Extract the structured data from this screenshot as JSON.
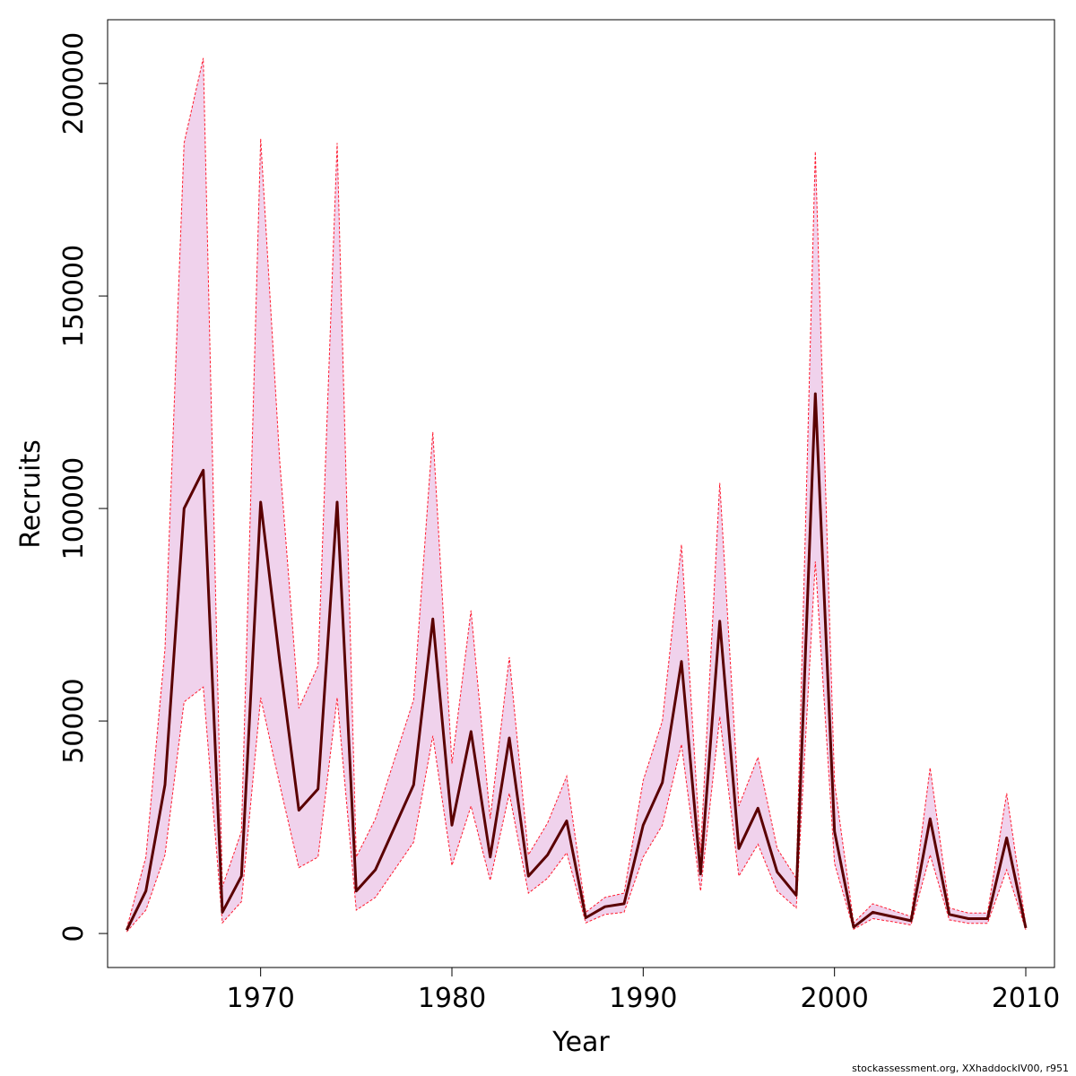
{
  "chart_data": {
    "type": "line",
    "title": "",
    "xlabel": "Year",
    "ylabel": "Recruits",
    "xlim": [
      1962,
      2011.5
    ],
    "ylim": [
      -8000,
      215000
    ],
    "x_ticks": [
      1970,
      1980,
      1990,
      2000,
      2010
    ],
    "y_ticks": [
      0,
      50000,
      100000,
      150000,
      200000
    ],
    "grid": false,
    "colors": {
      "line": "#5a0000",
      "band_fill": "#f0d2ec",
      "band_edge": "#ff1a2e"
    },
    "x": [
      1963,
      1964,
      1965,
      1966,
      1967,
      1968,
      1969,
      1970,
      1971,
      1972,
      1973,
      1974,
      1975,
      1976,
      1977,
      1978,
      1979,
      1980,
      1981,
      1982,
      1983,
      1984,
      1985,
      1986,
      1987,
      1988,
      1989,
      1990,
      1991,
      1992,
      1993,
      1994,
      1995,
      1996,
      1997,
      1998,
      1999,
      2000,
      2001,
      2002,
      2003,
      2004,
      2005,
      2006,
      2007,
      2008,
      2009,
      2010
    ],
    "series": [
      {
        "values": [
          800,
          10000,
          35000,
          100000,
          109000,
          5000,
          13500,
          101500,
          64000,
          29000,
          34000,
          101500,
          10000,
          15000,
          25000,
          35000,
          74000,
          25500,
          47500,
          18000,
          46000,
          13500,
          18500,
          26500,
          3700,
          6300,
          7000,
          25500,
          35500,
          64000,
          14000,
          73500,
          20000,
          29500,
          14500,
          9000,
          127000,
          24000,
          1500,
          5000,
          4000,
          3000,
          27000,
          4500,
          3500,
          3500,
          22500,
          1300
        ]
      }
    ],
    "interval": {
      "upper": [
        1200,
        18000,
        67000,
        186000,
        206000,
        11000,
        24000,
        187000,
        111000,
        53000,
        63000,
        186000,
        18000,
        27000,
        41000,
        55000,
        118000,
        40000,
        76000,
        27000,
        65000,
        18500,
        26000,
        37000,
        5000,
        8500,
        9500,
        36000,
        50000,
        91500,
        19000,
        106000,
        30000,
        41500,
        20000,
        13000,
        184000,
        35500,
        2500,
        7000,
        5500,
        4000,
        39000,
        6000,
        4800,
        4800,
        33000,
        2000
      ],
      "lower": [
        400,
        5500,
        18500,
        54500,
        58000,
        2500,
        7500,
        55500,
        35000,
        15500,
        18000,
        55500,
        5500,
        8500,
        15000,
        21500,
        46500,
        16000,
        30000,
        12500,
        33000,
        9500,
        13000,
        19000,
        2500,
        4500,
        5000,
        18000,
        25500,
        44500,
        10000,
        51000,
        13500,
        21000,
        10000,
        6000,
        87500,
        16500,
        1000,
        3500,
        2800,
        2000,
        18500,
        3200,
        2400,
        2400,
        15000,
        900
      ]
    }
  },
  "footer": "stockassessment.org, XXhaddockIV00, r951"
}
